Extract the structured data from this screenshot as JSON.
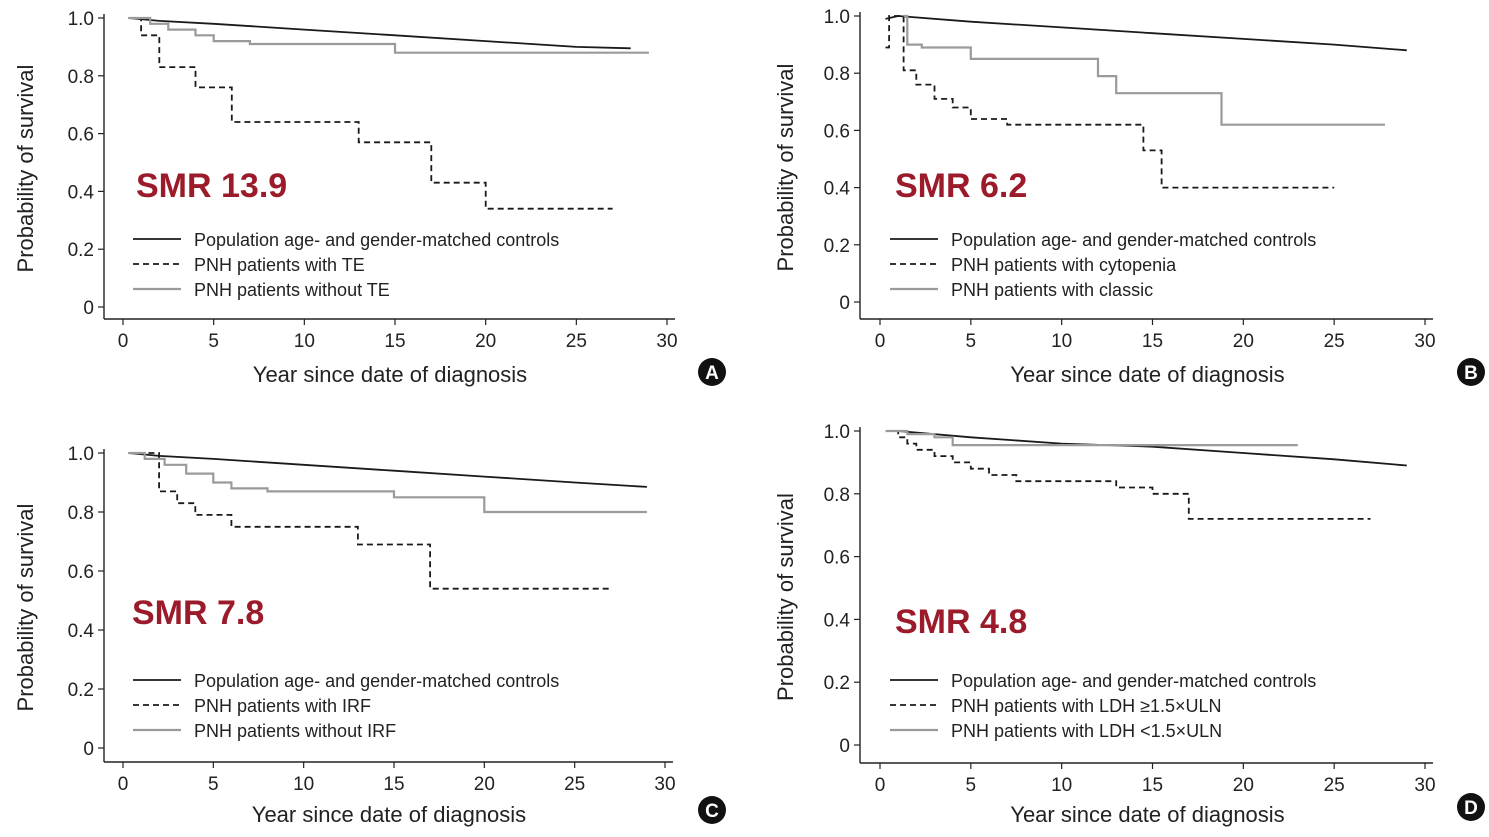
{
  "chart_data": [
    {
      "type": "line",
      "panel_letter": "A",
      "annotation": "SMR 13.9",
      "xlabel": "Year since date of diagnosis",
      "ylabel": "Probability of survival",
      "xlim": [
        0,
        30
      ],
      "ylim": [
        0,
        1.0
      ],
      "xticks": [
        "0",
        "5",
        "10",
        "15",
        "20",
        "25",
        "30"
      ],
      "yticks": [
        "0",
        "0.2",
        "0.4",
        "0.6",
        "0.8",
        "1.0"
      ],
      "series": [
        {
          "name": "Population age- and gender-matched controls",
          "style": "solid",
          "color": "#1a1a1a",
          "step": false,
          "x": [
            0.3,
            2,
            5,
            10,
            15,
            20,
            25,
            28
          ],
          "y": [
            1.0,
            0.99,
            0.98,
            0.96,
            0.94,
            0.92,
            0.9,
            0.895
          ]
        },
        {
          "name": "PNH patients with TE",
          "style": "dashed",
          "color": "#1a1a1a",
          "step": true,
          "x": [
            0.3,
            1,
            2,
            4,
            6,
            13,
            17,
            20,
            27
          ],
          "y": [
            1.0,
            0.94,
            0.83,
            0.76,
            0.64,
            0.57,
            0.43,
            0.34,
            0.34
          ]
        },
        {
          "name": "PNH patients without TE",
          "style": "solid",
          "color": "#9a9a9a",
          "step": true,
          "x": [
            0.3,
            1.5,
            2.5,
            4,
            5,
            7,
            15,
            29
          ],
          "y": [
            1.0,
            0.98,
            0.96,
            0.94,
            0.92,
            0.91,
            0.88,
            0.88
          ]
        }
      ]
    },
    {
      "type": "line",
      "panel_letter": "B",
      "annotation": "SMR 6.2",
      "xlabel": "Year since date of diagnosis",
      "ylabel": "Probability of survival",
      "xlim": [
        0,
        30
      ],
      "ylim": [
        0,
        1.0
      ],
      "xticks": [
        "0",
        "5",
        "10",
        "15",
        "20",
        "25",
        "30"
      ],
      "yticks": [
        "0",
        "0.2",
        "0.4",
        "0.6",
        "0.8",
        "1.0"
      ],
      "series": [
        {
          "name": "Population age- and gender-matched controls",
          "style": "solid",
          "color": "#1a1a1a",
          "step": false,
          "x": [
            0.3,
            1,
            5,
            10,
            15,
            20,
            25,
            29
          ],
          "y": [
            0.99,
            1.0,
            0.98,
            0.96,
            0.94,
            0.92,
            0.9,
            0.88
          ]
        },
        {
          "name": "PNH patients with cytopenia",
          "style": "dashed",
          "color": "#1a1a1a",
          "step": true,
          "x": [
            0.3,
            0.5,
            1.3,
            2,
            3,
            4,
            5,
            7,
            14.5,
            15.5,
            25
          ],
          "y": [
            0.89,
            1.0,
            0.81,
            0.76,
            0.71,
            0.68,
            0.64,
            0.62,
            0.53,
            0.4,
            0.4
          ]
        },
        {
          "name": "PNH patients with classic",
          "style": "solid",
          "color": "#9a9a9a",
          "step": true,
          "x": [
            1.3,
            1.5,
            2.3,
            5,
            12,
            13,
            18.8,
            27.8
          ],
          "y": [
            1.0,
            0.9,
            0.89,
            0.85,
            0.79,
            0.73,
            0.62,
            0.62
          ]
        }
      ]
    },
    {
      "type": "line",
      "panel_letter": "C",
      "annotation": "SMR 7.8",
      "xlabel": "Year since date of diagnosis",
      "ylabel": "Probability of survival",
      "xlim": [
        0,
        30
      ],
      "ylim": [
        0,
        1.0
      ],
      "xticks": [
        "0",
        "5",
        "10",
        "15",
        "20",
        "25",
        "30"
      ],
      "yticks": [
        "0",
        "0.2",
        "0.4",
        "0.6",
        "0.8",
        "1.0"
      ],
      "series": [
        {
          "name": "Population age- and gender-matched controls",
          "style": "solid",
          "color": "#1a1a1a",
          "step": false,
          "x": [
            0.3,
            2,
            5,
            10,
            15,
            20,
            25,
            29
          ],
          "y": [
            1.0,
            0.99,
            0.98,
            0.96,
            0.94,
            0.92,
            0.9,
            0.885
          ]
        },
        {
          "name": "PNH patients with IRF",
          "style": "dashed",
          "color": "#1a1a1a",
          "step": true,
          "x": [
            0.3,
            2,
            3,
            4,
            6,
            13,
            17,
            27
          ],
          "y": [
            1.0,
            0.87,
            0.83,
            0.79,
            0.75,
            0.69,
            0.54,
            0.54
          ]
        },
        {
          "name": "PNH patients without IRF",
          "style": "solid",
          "color": "#9a9a9a",
          "step": true,
          "x": [
            0.3,
            1.2,
            2.3,
            3.5,
            5,
            6,
            8,
            15,
            20,
            29
          ],
          "y": [
            1.0,
            0.98,
            0.96,
            0.93,
            0.9,
            0.88,
            0.87,
            0.85,
            0.8,
            0.8
          ]
        }
      ]
    },
    {
      "type": "line",
      "panel_letter": "D",
      "annotation": "SMR 4.8",
      "xlabel": "Year since date of diagnosis",
      "ylabel": "Probability of survival",
      "xlim": [
        0,
        30
      ],
      "ylim": [
        0,
        1.0
      ],
      "xticks": [
        "0",
        "5",
        "10",
        "15",
        "20",
        "25",
        "30"
      ],
      "yticks": [
        "0",
        "0.2",
        "0.4",
        "0.6",
        "0.8",
        "1.0"
      ],
      "series": [
        {
          "name": "Population age- and gender-matched controls",
          "style": "solid",
          "color": "#1a1a1a",
          "step": false,
          "x": [
            0.3,
            1,
            5,
            10,
            15,
            20,
            25,
            29
          ],
          "y": [
            1.0,
            1.0,
            0.98,
            0.96,
            0.95,
            0.93,
            0.91,
            0.89
          ]
        },
        {
          "name": "PNH patients with LDH ≥1.5×ULN",
          "style": "dashed",
          "color": "#1a1a1a",
          "step": true,
          "x": [
            0.3,
            1,
            1.5,
            2,
            3,
            4,
            5,
            6,
            7.5,
            13,
            15,
            17,
            27
          ],
          "y": [
            1.0,
            0.98,
            0.96,
            0.94,
            0.92,
            0.9,
            0.88,
            0.86,
            0.84,
            0.82,
            0.8,
            0.72,
            0.72
          ]
        },
        {
          "name": "PNH patients with LDH <1.5×ULN",
          "style": "solid",
          "color": "#9a9a9a",
          "step": true,
          "x": [
            0.3,
            1.5,
            3,
            4,
            23
          ],
          "y": [
            1.0,
            0.99,
            0.98,
            0.955,
            0.955
          ]
        }
      ]
    }
  ]
}
